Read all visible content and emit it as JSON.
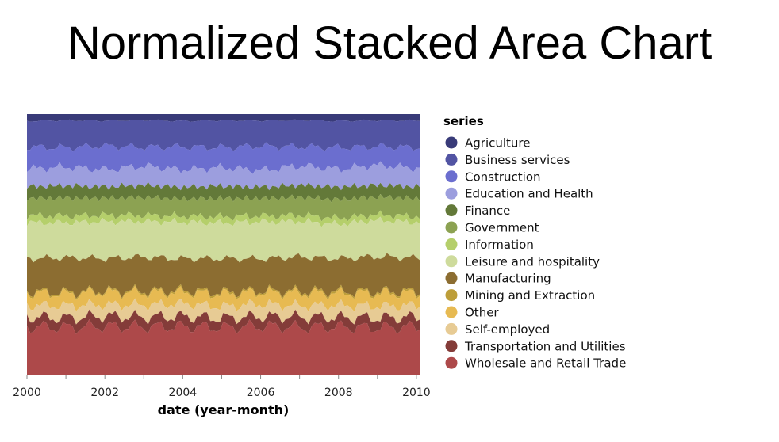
{
  "page": {
    "title": "Normalized Stacked Area Chart"
  },
  "chart_data": {
    "type": "area",
    "stacking": "normalized",
    "title": "Normalized Stacked Area Chart",
    "xlabel": "date (year-month)",
    "ylabel": "",
    "x_ticks": [
      "2000",
      "2002",
      "2004",
      "2006",
      "2008",
      "2010"
    ],
    "x_domain": [
      "2000-01",
      "2010-02"
    ],
    "legend": {
      "title": "series",
      "position": "right"
    },
    "grid": false,
    "sample_dates": [
      "2000-01",
      "2001-01",
      "2002-01",
      "2003-01",
      "2004-01",
      "2005-01",
      "2006-01",
      "2007-01",
      "2008-01",
      "2009-01",
      "2010-01"
    ],
    "series": [
      {
        "name": "Agriculture",
        "color": "#393b79",
        "values": [
          0.026,
          0.024,
          0.025,
          0.023,
          0.026,
          0.024,
          0.025,
          0.023,
          0.026,
          0.024,
          0.025
        ]
      },
      {
        "name": "Business services",
        "color": "#5254a3",
        "values": [
          0.098,
          0.102,
          0.095,
          0.1,
          0.097,
          0.101,
          0.096,
          0.099,
          0.1,
          0.098,
          0.101
        ]
      },
      {
        "name": "Construction",
        "color": "#6b6ecf",
        "values": [
          0.082,
          0.074,
          0.088,
          0.072,
          0.085,
          0.076,
          0.09,
          0.073,
          0.08,
          0.07,
          0.078
        ]
      },
      {
        "name": "Education and Health",
        "color": "#9c9ede",
        "values": [
          0.067,
          0.07,
          0.065,
          0.071,
          0.066,
          0.069,
          0.064,
          0.072,
          0.068,
          0.075,
          0.07
        ]
      },
      {
        "name": "Finance",
        "color": "#637939",
        "values": [
          0.044,
          0.046,
          0.043,
          0.045,
          0.044,
          0.046,
          0.043,
          0.045,
          0.047,
          0.044,
          0.045
        ]
      },
      {
        "name": "Government",
        "color": "#8ca252",
        "values": [
          0.066,
          0.068,
          0.064,
          0.067,
          0.065,
          0.069,
          0.066,
          0.068,
          0.07,
          0.067,
          0.068
        ]
      },
      {
        "name": "Information",
        "color": "#b5cf6b",
        "values": [
          0.026,
          0.025,
          0.024,
          0.023,
          0.022,
          0.023,
          0.022,
          0.023,
          0.022,
          0.021,
          0.022
        ]
      },
      {
        "name": "Leisure and hospitality",
        "color": "#cedb9c",
        "values": [
          0.135,
          0.132,
          0.138,
          0.133,
          0.137,
          0.134,
          0.139,
          0.133,
          0.13,
          0.136,
          0.134
        ]
      },
      {
        "name": "Manufacturing",
        "color": "#8c6d31",
        "values": [
          0.125,
          0.13,
          0.122,
          0.127,
          0.12,
          0.126,
          0.121,
          0.128,
          0.124,
          0.131,
          0.127
        ]
      },
      {
        "name": "Mining and Extraction",
        "color": "#bd9e39",
        "values": [
          0.006,
          0.006,
          0.005,
          0.006,
          0.006,
          0.007,
          0.006,
          0.007,
          0.007,
          0.006,
          0.007
        ]
      },
      {
        "name": "Other",
        "color": "#e7ba52",
        "values": [
          0.046,
          0.044,
          0.047,
          0.045,
          0.043,
          0.046,
          0.044,
          0.047,
          0.045,
          0.048,
          0.046
        ]
      },
      {
        "name": "Self-employed",
        "color": "#e7cb94",
        "values": [
          0.044,
          0.047,
          0.043,
          0.046,
          0.048,
          0.044,
          0.047,
          0.043,
          0.046,
          0.044,
          0.045
        ]
      },
      {
        "name": "Transportation and Utilities",
        "color": "#843c39",
        "values": [
          0.037,
          0.035,
          0.038,
          0.036,
          0.037,
          0.035,
          0.036,
          0.038,
          0.035,
          0.037,
          0.036
        ]
      },
      {
        "name": "Wholesale and Retail Trade",
        "color": "#ad494a",
        "values": [
          0.18,
          0.178,
          0.182,
          0.179,
          0.181,
          0.177,
          0.183,
          0.178,
          0.18,
          0.176,
          0.181
        ]
      }
    ]
  }
}
